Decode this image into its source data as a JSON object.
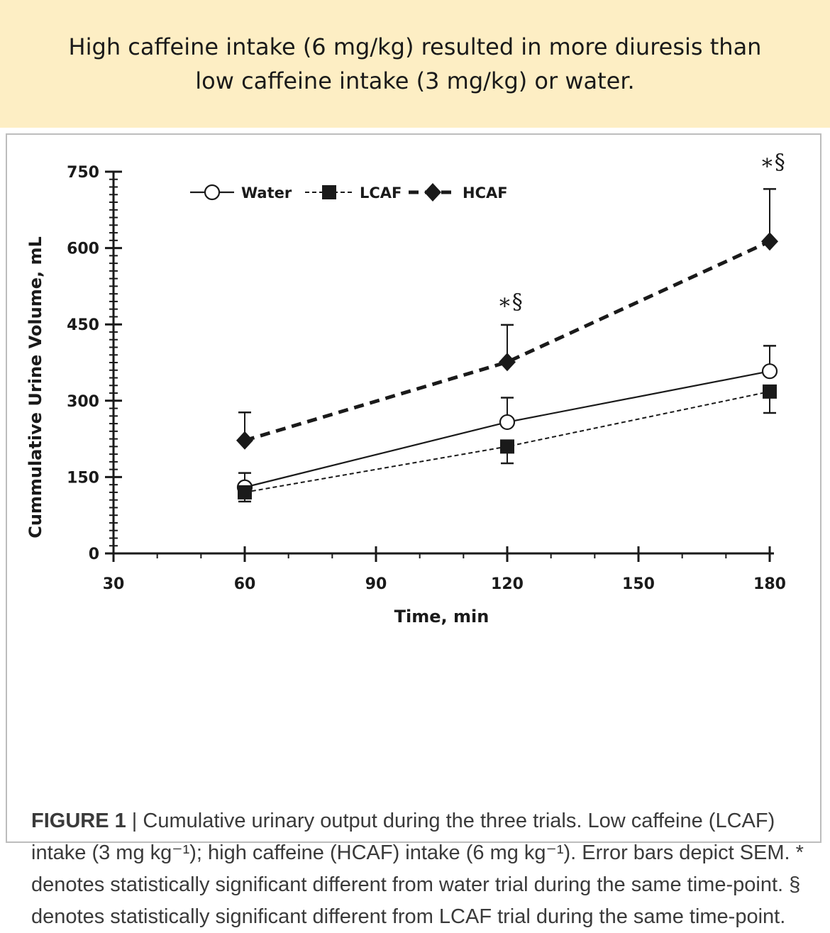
{
  "banner": {
    "line1": "High caffeine intake (6 mg/kg) resulted in more diuresis than",
    "line2": "low caffeine intake (3 mg/kg) or water."
  },
  "chart_data": {
    "type": "line",
    "xlabel": "Time, min",
    "ylabel": "Cummulative Urine Volume, mL",
    "xlim": [
      30,
      180
    ],
    "ylim": [
      0,
      750
    ],
    "x_ticks": [
      30,
      60,
      90,
      120,
      150,
      180
    ],
    "y_ticks": [
      0,
      150,
      300,
      450,
      600,
      750
    ],
    "grid": false,
    "legend_position": "top-center",
    "series": [
      {
        "name": "Water",
        "key": "water",
        "marker": "open-circle",
        "line": "solid",
        "x": [
          60,
          120,
          180
        ],
        "y": [
          130,
          258,
          358
        ],
        "sem": [
          28,
          48,
          50
        ],
        "sem_direction": "up"
      },
      {
        "name": "LCAF",
        "key": "lcaf",
        "marker": "filled-square",
        "line": "dashed-thin",
        "x": [
          60,
          120,
          180
        ],
        "y": [
          120,
          210,
          318
        ],
        "sem": [
          18,
          33,
          42
        ],
        "sem_direction": "down"
      },
      {
        "name": "HCAF",
        "key": "hcaf",
        "marker": "filled-diamond",
        "line": "dashed-thick",
        "x": [
          60,
          120,
          180
        ],
        "y": [
          222,
          376,
          613
        ],
        "sem": [
          55,
          73,
          103
        ],
        "sem_direction": "up"
      }
    ],
    "annotations": [
      {
        "x": 120,
        "y": 480,
        "text": "∗§"
      },
      {
        "x": 180,
        "y": 755,
        "text": "∗§"
      }
    ]
  },
  "caption": {
    "label": "FIGURE 1",
    "separator": " | ",
    "text": "Cumulative urinary output during the three trials. Low caffeine (LCAF) intake (3 mg kg⁻¹); high caffeine (HCAF) intake (6 mg kg⁻¹). Error bars depict SEM. * denotes statistically significant different from water trial during the same time-point. § denotes statistically significant different from LCAF trial during the same time-point."
  },
  "colors": {
    "banner_bg": "#fdeec4",
    "ink": "#1a1a1a",
    "caption_text": "#3a3a3a",
    "border": "#bdbdbd"
  }
}
